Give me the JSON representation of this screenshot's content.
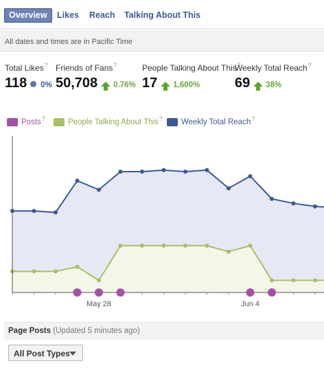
{
  "tabs": [
    {
      "label": "Overview",
      "active": true
    },
    {
      "label": "Likes",
      "active": false
    },
    {
      "label": "Reach",
      "active": false
    },
    {
      "label": "Talking About This",
      "active": false
    }
  ],
  "timezone_note": "All dates and times are in Pacific Time",
  "help_mark": "?",
  "stats": [
    {
      "label": "Total Likes",
      "value": "118",
      "change": "0%",
      "trend": "neutral"
    },
    {
      "label": "Friends of Fans",
      "value": "50,708",
      "change": "0.76%",
      "trend": "up"
    },
    {
      "label": "People Talking About This",
      "value": "17",
      "change": "1,600%",
      "trend": "up"
    },
    {
      "label": "Weekly Total Reach",
      "value": "69",
      "change": "38%",
      "trend": "up"
    }
  ],
  "legend": [
    {
      "label": "Posts",
      "color": "#a550a5",
      "text_color": "#a550a5"
    },
    {
      "label": "People Talking About This",
      "color": "#a7c06a",
      "text_color": "#8faa4e"
    },
    {
      "label": "Weekly Total Reach",
      "color": "#3b5998",
      "text_color": "#3b5998"
    }
  ],
  "chart_data": {
    "type": "line",
    "x_tick_labels": [
      "May 28",
      "Jun 4"
    ],
    "series": [
      {
        "name": "Weekly Total Reach",
        "color": "#3b5998",
        "fill": "#e6e9f4",
        "values": [
          54,
          54,
          53,
          74,
          68,
          80,
          80,
          81,
          80,
          81,
          69,
          77,
          62,
          59,
          57,
          56
        ]
      },
      {
        "name": "People Talking About This",
        "color": "#a7c06a",
        "fill": "#f4f7e8",
        "values": [
          14,
          14,
          14,
          17,
          8,
          31,
          31,
          31,
          31,
          31,
          27,
          31,
          8,
          8,
          8,
          8
        ]
      }
    ],
    "posts_marker_indices": [
      3,
      4,
      5,
      11,
      12
    ],
    "ylim": [
      0,
      100
    ]
  },
  "page_posts": {
    "title": "Page Posts",
    "updated": "(Updated 5 minutes ago)"
  },
  "filter": {
    "label": "All Post Types"
  }
}
